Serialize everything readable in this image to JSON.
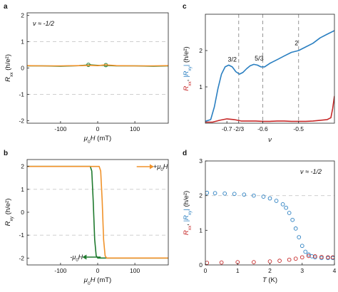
{
  "chart_data": [
    {
      "panel": "a",
      "type": "line",
      "xlabel_main": "μ",
      "xlabel_sub": "0",
      "xlabel_rest": "H (mT)",
      "ylabel": "R_xx (h/e²)",
      "xlim": [
        -190,
        190
      ],
      "ylim": [
        -2.1,
        2.1
      ],
      "xticks": [
        -100,
        0,
        100
      ],
      "xtick_labels": [
        "-100",
        "0",
        "100"
      ],
      "yticks": [
        -2,
        -1,
        0,
        1,
        2
      ],
      "ytick_labels": [
        "-2",
        "-1",
        "0",
        "1",
        "2"
      ],
      "hlines": [
        1,
        -1
      ],
      "annotation": "ν ≈ -1/2",
      "series": [
        {
          "color": "#1f7a2e",
          "x": [
            -190,
            -150,
            -100,
            -50,
            -20,
            0,
            20,
            50,
            100,
            150,
            190
          ],
          "y": [
            0.08,
            0.08,
            0.07,
            0.09,
            0.12,
            0.1,
            0.1,
            0.08,
            0.08,
            0.07,
            0.08
          ]
        },
        {
          "color": "#f0922a",
          "x": [
            -190,
            -150,
            -100,
            -50,
            -20,
            0,
            20,
            50,
            100,
            150,
            190
          ],
          "y": [
            0.09,
            0.08,
            0.08,
            0.09,
            0.1,
            0.09,
            0.12,
            0.09,
            0.08,
            0.08,
            0.09
          ]
        }
      ]
    },
    {
      "panel": "b",
      "type": "line",
      "xlabel_main": "μ",
      "xlabel_sub": "0",
      "xlabel_rest": "H (mT)",
      "ylabel": "R_xy (h/e²)",
      "xlim": [
        -190,
        190
      ],
      "ylim": [
        -2.3,
        2.3
      ],
      "xticks": [
        -100,
        0,
        100
      ],
      "xtick_labels": [
        "-100",
        "0",
        "100"
      ],
      "yticks": [
        -2,
        -1,
        0,
        1,
        2
      ],
      "ytick_labels": [
        "-2",
        "-1",
        "0",
        "1",
        "2"
      ],
      "hlines": [
        1,
        -1
      ],
      "legend_up": "+μ0H",
      "legend_down": "-μ0H",
      "series": [
        {
          "color": "#1f7a2e",
          "x": [
            -190,
            -20,
            -16,
            -12,
            -8,
            -4,
            0,
            190
          ],
          "y": [
            2.0,
            2.0,
            1.8,
            0.5,
            -1.2,
            -1.9,
            -2.0,
            -2.0
          ]
        },
        {
          "color": "#f0922a",
          "x": [
            -190,
            4,
            8,
            12,
            16,
            20,
            24,
            190
          ],
          "y": [
            2.0,
            2.0,
            1.8,
            0.5,
            -1.2,
            -1.9,
            -2.0,
            -2.0
          ]
        }
      ]
    },
    {
      "panel": "c",
      "type": "line",
      "xlabel": "ν",
      "ylabel_red": "R_xx",
      "ylabel_blue": "|R_xy|",
      "ylabel_unit": "(h/e²)",
      "xlim": [
        -0.76,
        -0.4
      ],
      "ylim": [
        0,
        3
      ],
      "xticks": [
        -0.7,
        -0.667,
        -0.6,
        -0.5
      ],
      "xtick_labels": [
        "-0.7",
        "-2/3",
        "-0.6",
        "-0.5"
      ],
      "yticks": [
        1,
        2
      ],
      "ytick_labels": [
        "1",
        "2"
      ],
      "vlines": [
        -0.667,
        -0.6,
        -0.5
      ],
      "plateau_labels": [
        {
          "text": "3/2",
          "x": -0.685,
          "y": 1.62
        },
        {
          "text": "5/3",
          "x": -0.61,
          "y": 1.65
        },
        {
          "text": "2",
          "x": -0.506,
          "y": 2.07
        }
      ],
      "series": [
        {
          "name": "R_xx",
          "color": "#c62828",
          "x": [
            -0.76,
            -0.74,
            -0.72,
            -0.7,
            -0.68,
            -0.66,
            -0.64,
            -0.62,
            -0.6,
            -0.58,
            -0.56,
            -0.54,
            -0.52,
            -0.5,
            -0.48,
            -0.46,
            -0.44,
            -0.42,
            -0.41,
            -0.405,
            -0.4
          ],
          "y": [
            0.03,
            0.03,
            0.08,
            0.12,
            0.1,
            0.06,
            0.06,
            0.06,
            0.05,
            0.05,
            0.06,
            0.06,
            0.05,
            0.05,
            0.05,
            0.06,
            0.08,
            0.1,
            0.15,
            0.4,
            0.75
          ]
        },
        {
          "name": "|R_xy|",
          "color": "#2a7fc1",
          "x": [
            -0.76,
            -0.745,
            -0.735,
            -0.725,
            -0.715,
            -0.705,
            -0.695,
            -0.685,
            -0.675,
            -0.665,
            -0.655,
            -0.645,
            -0.635,
            -0.625,
            -0.615,
            -0.605,
            -0.595,
            -0.58,
            -0.56,
            -0.54,
            -0.52,
            -0.5,
            -0.48,
            -0.46,
            -0.44,
            -0.42,
            -0.4
          ],
          "y": [
            0.05,
            0.1,
            0.45,
            0.95,
            1.35,
            1.55,
            1.6,
            1.55,
            1.42,
            1.35,
            1.4,
            1.5,
            1.58,
            1.62,
            1.6,
            1.55,
            1.55,
            1.65,
            1.75,
            1.85,
            1.95,
            2.0,
            2.1,
            2.2,
            2.35,
            2.45,
            2.55
          ]
        }
      ]
    },
    {
      "panel": "d",
      "type": "scatter",
      "xlabel_main": "T",
      "xlabel_rest": " (K)",
      "ylabel_red": "R_xx",
      "ylabel_blue": "|R_xy|",
      "ylabel_unit": "(h/e²)",
      "xlim": [
        0,
        4
      ],
      "ylim": [
        0,
        3
      ],
      "xticks": [
        0,
        1,
        2,
        3,
        4
      ],
      "xtick_labels": [
        "0",
        "1",
        "2",
        "3",
        "4"
      ],
      "yticks": [
        0,
        1,
        2,
        3
      ],
      "ytick_labels": [
        "0",
        "1",
        "2",
        "3"
      ],
      "hlines": [
        2
      ],
      "annotation": "ν ≈ -1/2",
      "series": [
        {
          "name": "|R_xy|",
          "color": "#2a7fc1",
          "x": [
            0.05,
            0.3,
            0.6,
            0.9,
            1.2,
            1.5,
            1.8,
            2.0,
            2.2,
            2.4,
            2.5,
            2.6,
            2.7,
            2.8,
            2.9,
            3.0,
            3.1,
            3.2,
            3.3,
            3.4,
            3.6,
            3.8,
            3.95
          ],
          "y": [
            2.08,
            2.07,
            2.06,
            2.05,
            2.03,
            2.0,
            1.97,
            1.92,
            1.85,
            1.75,
            1.65,
            1.5,
            1.3,
            1.05,
            0.8,
            0.55,
            0.38,
            0.3,
            0.25,
            0.22,
            0.2,
            0.2,
            0.2
          ]
        },
        {
          "name": "R_xx",
          "color": "#c62828",
          "x": [
            0.05,
            0.5,
            1.0,
            1.5,
            2.0,
            2.3,
            2.6,
            2.8,
            3.0,
            3.2,
            3.4,
            3.6,
            3.8,
            3.95
          ],
          "y": [
            0.06,
            0.07,
            0.08,
            0.08,
            0.1,
            0.12,
            0.15,
            0.18,
            0.22,
            0.26,
            0.25,
            0.23,
            0.22,
            0.22
          ]
        }
      ]
    }
  ]
}
